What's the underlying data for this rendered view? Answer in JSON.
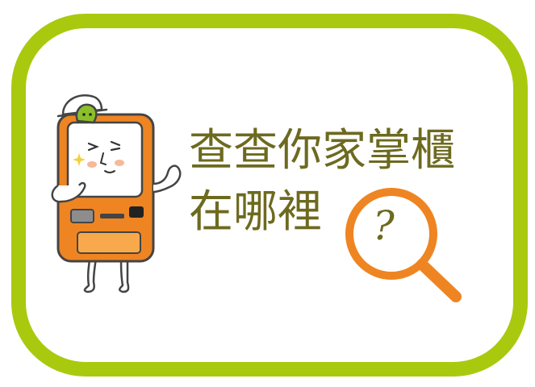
{
  "banner": {
    "line1": "查查你家掌櫃",
    "line2": "在哪裡",
    "question_mark": "?"
  },
  "icons": {
    "mascot": "atm-mascot-icon",
    "magnifier": "magnifying-glass-icon"
  },
  "colors": {
    "frame": "#a9c90f",
    "text": "#6d6a1f",
    "orange": "#ee8522",
    "green": "#8bbf2a"
  }
}
